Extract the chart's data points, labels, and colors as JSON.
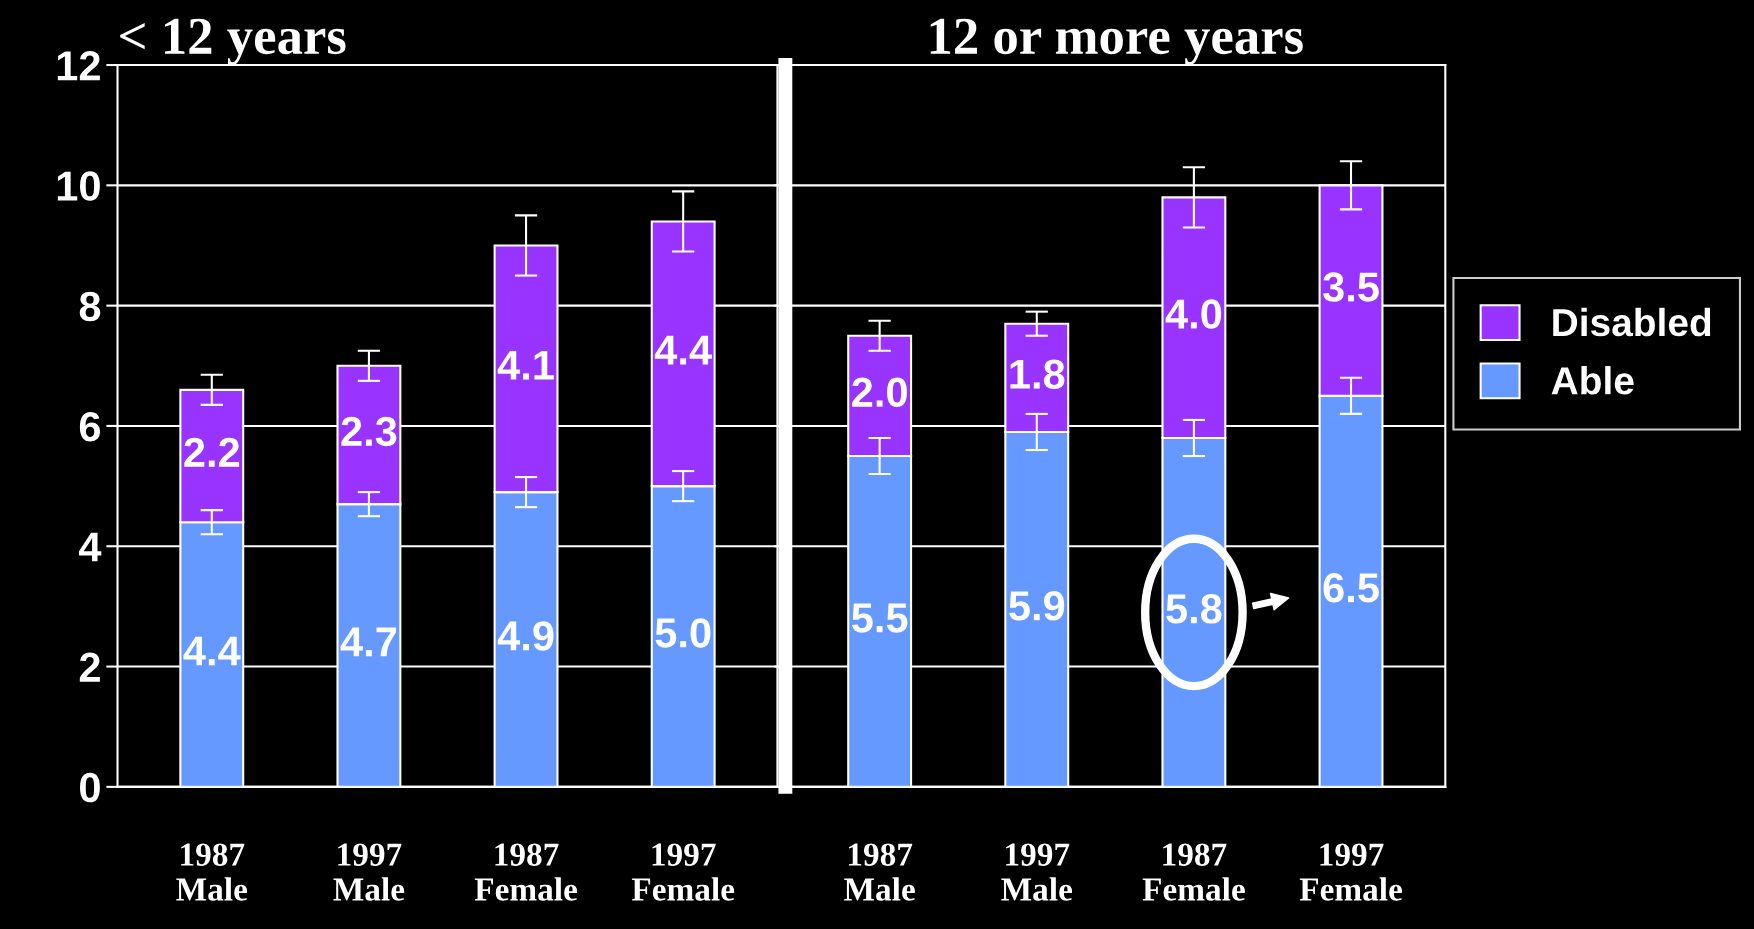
{
  "chart_data": [
    {
      "type": "bar",
      "title": "< 12 years",
      "stacked": true,
      "categories": [
        "1987\nMale",
        "1997\nMale",
        "1987\nFemale",
        "1997\nFemale"
      ],
      "series": [
        {
          "color": "#6699ff",
          "values": [
            4.4,
            4.7,
            4.9,
            5.0
          ],
          "value_labels": [
            "4.4",
            "4.7",
            "4.9",
            "5.0"
          ],
          "errors": [
            0.2,
            0.2,
            0.25,
            0.25
          ]
        },
        {
          "color": "#9933ff",
          "values": [
            2.2,
            2.3,
            4.1,
            4.4
          ],
          "value_labels": [
            "2.2",
            "2.3",
            "4.1",
            "4.4"
          ],
          "errors": [
            0.25,
            0.25,
            0.5,
            0.5
          ]
        }
      ],
      "ylim": [
        0,
        12
      ],
      "yticks": [
        0,
        2,
        4,
        6,
        8,
        10,
        12
      ],
      "grid": "y"
    },
    {
      "type": "bar",
      "title": "12 or more years",
      "stacked": true,
      "categories": [
        "1987\nMale",
        "1997\nMale",
        "1987\nFemale",
        "1997\nFemale"
      ],
      "series": [
        {
          "name": "Able",
          "color": "#6699ff",
          "values": [
            5.5,
            5.9,
            5.8,
            6.5
          ],
          "value_labels": [
            "5.5",
            "5.9",
            "5.8",
            "6.5"
          ],
          "errors": [
            0.3,
            0.3,
            0.3,
            0.3
          ]
        },
        {
          "name": "Disabled",
          "color": "#9933ff",
          "values": [
            2.0,
            1.8,
            4.0,
            3.5
          ],
          "value_labels": [
            "2.0",
            "1.8",
            "4.0",
            "3.5"
          ],
          "errors": [
            0.25,
            0.2,
            0.5,
            0.4
          ]
        }
      ],
      "ylim": [
        0,
        12
      ],
      "yticks": [
        0,
        2,
        4,
        6,
        8,
        10,
        12
      ],
      "grid": "y",
      "tick_labels": "x",
      "legend": "right"
    }
  ]
}
